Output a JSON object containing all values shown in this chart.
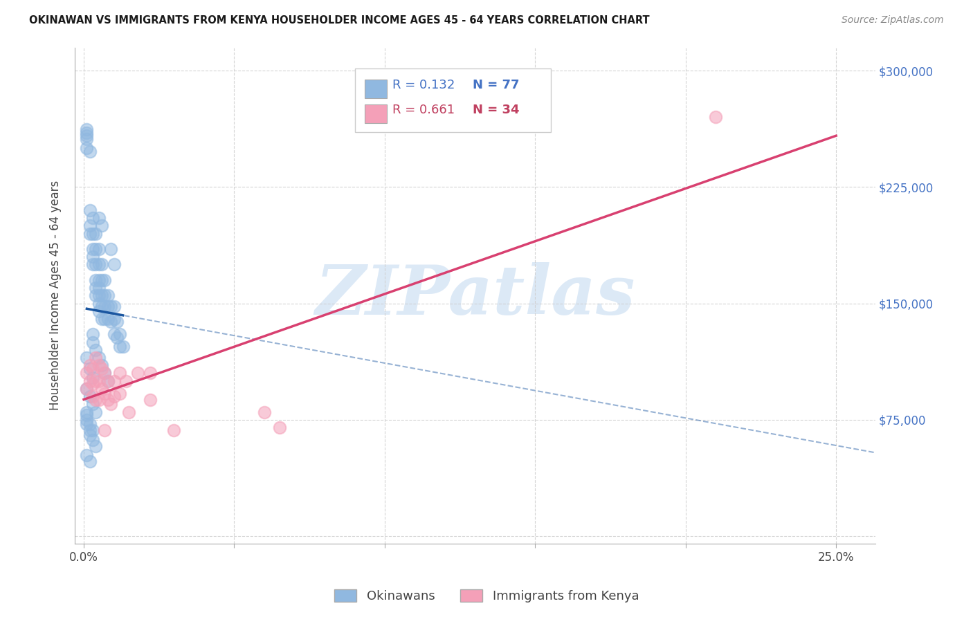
{
  "title": "OKINAWAN VS IMMIGRANTS FROM KENYA HOUSEHOLDER INCOME AGES 45 - 64 YEARS CORRELATION CHART",
  "source": "Source: ZipAtlas.com",
  "ylabel": "Householder Income Ages 45 - 64 years",
  "xlim": [
    -0.003,
    0.263
  ],
  "ylim": [
    -5000,
    315000
  ],
  "x_tick_positions": [
    0.0,
    0.05,
    0.1,
    0.15,
    0.2,
    0.25
  ],
  "x_tick_labels": [
    "0.0%",
    "",
    "",
    "",
    "",
    "25.0%"
  ],
  "y_tick_positions": [
    0,
    75000,
    150000,
    225000,
    300000
  ],
  "y_tick_labels_right": [
    "",
    "$75,000",
    "$150,000",
    "$225,000",
    "$300,000"
  ],
  "okinawan_color": "#90b8e0",
  "kenya_color": "#f4a0b8",
  "okinawan_line_color": "#1a56a0",
  "kenya_line_color": "#d84070",
  "watermark_color": "#c0d8f0",
  "legend_color_ok": "#4472c4",
  "legend_color_ke": "#c04060",
  "okinawan_x": [
    0.005,
    0.006,
    0.009,
    0.01,
    0.001,
    0.001,
    0.001,
    0.001,
    0.001,
    0.002,
    0.002,
    0.002,
    0.002,
    0.003,
    0.003,
    0.003,
    0.003,
    0.003,
    0.004,
    0.004,
    0.004,
    0.004,
    0.004,
    0.004,
    0.005,
    0.005,
    0.005,
    0.005,
    0.005,
    0.005,
    0.005,
    0.006,
    0.006,
    0.006,
    0.006,
    0.006,
    0.007,
    0.007,
    0.007,
    0.007,
    0.008,
    0.008,
    0.008,
    0.009,
    0.009,
    0.01,
    0.01,
    0.01,
    0.011,
    0.011,
    0.012,
    0.012,
    0.013,
    0.001,
    0.002,
    0.003,
    0.004,
    0.001,
    0.001,
    0.002,
    0.002,
    0.003,
    0.003,
    0.004,
    0.001,
    0.002,
    0.003,
    0.001,
    0.002,
    0.001,
    0.001,
    0.002,
    0.003,
    0.003,
    0.004,
    0.005,
    0.006,
    0.007,
    0.008
  ],
  "okinawan_y": [
    205000,
    200000,
    185000,
    175000,
    258000,
    260000,
    262000,
    256000,
    250000,
    248000,
    210000,
    200000,
    195000,
    205000,
    195000,
    185000,
    180000,
    175000,
    195000,
    185000,
    175000,
    165000,
    160000,
    155000,
    185000,
    175000,
    165000,
    160000,
    155000,
    150000,
    145000,
    175000,
    165000,
    155000,
    148000,
    140000,
    165000,
    155000,
    148000,
    140000,
    155000,
    148000,
    140000,
    148000,
    138000,
    148000,
    140000,
    130000,
    138000,
    128000,
    130000,
    122000,
    122000,
    95000,
    90000,
    85000,
    80000,
    80000,
    75000,
    72000,
    68000,
    68000,
    62000,
    58000,
    115000,
    108000,
    102000,
    52000,
    48000,
    78000,
    72000,
    65000,
    130000,
    125000,
    120000,
    115000,
    110000,
    105000,
    100000
  ],
  "kenya_x": [
    0.001,
    0.001,
    0.002,
    0.002,
    0.003,
    0.003,
    0.003,
    0.004,
    0.004,
    0.004,
    0.005,
    0.005,
    0.005,
    0.006,
    0.006,
    0.007,
    0.007,
    0.008,
    0.008,
    0.009,
    0.01,
    0.01,
    0.012,
    0.012,
    0.014,
    0.015,
    0.018,
    0.022,
    0.022,
    0.03,
    0.06,
    0.065,
    0.21,
    0.007
  ],
  "kenya_y": [
    105000,
    95000,
    110000,
    100000,
    108000,
    98000,
    90000,
    115000,
    100000,
    88000,
    110000,
    100000,
    88000,
    108000,
    95000,
    105000,
    92000,
    100000,
    88000,
    85000,
    100000,
    90000,
    105000,
    92000,
    100000,
    80000,
    105000,
    105000,
    88000,
    68000,
    80000,
    70000,
    270000,
    68000
  ]
}
